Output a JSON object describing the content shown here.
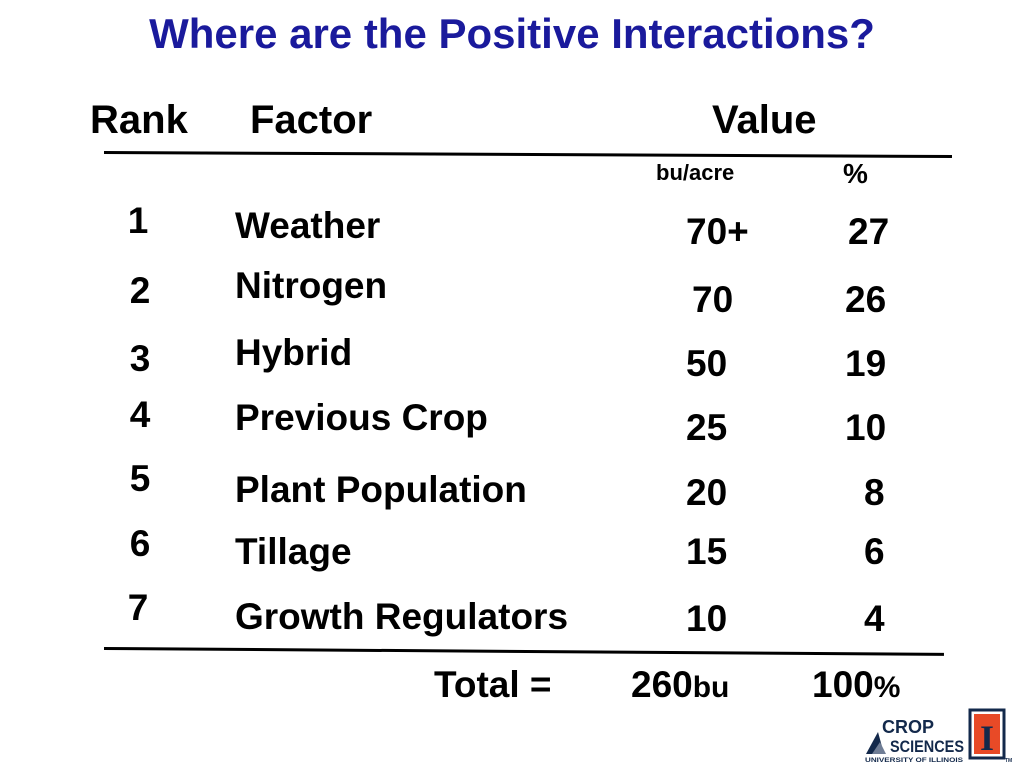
{
  "title": "Where are the Positive Interactions?",
  "headers": {
    "rank": "Rank",
    "factor": "Factor",
    "value": "Value"
  },
  "units": {
    "bu": "bu/acre",
    "pct": "%"
  },
  "rows": [
    {
      "rank": "1",
      "factor": "Weather",
      "bu": "70+",
      "pct": "27"
    },
    {
      "rank": "2",
      "factor": "Nitrogen",
      "bu": "70",
      "pct": "26"
    },
    {
      "rank": "3",
      "factor": "Hybrid",
      "bu": "50",
      "pct": "19"
    },
    {
      "rank": "4",
      "factor": "Previous Crop",
      "bu": "25",
      "pct": "10"
    },
    {
      "rank": "5",
      "factor": "Plant Population",
      "bu": "20",
      "pct": "8"
    },
    {
      "rank": "6",
      "factor": "Tillage",
      "bu": "15",
      "pct": "6"
    },
    {
      "rank": "7",
      "factor": "Growth Regulators",
      "bu": "10",
      "pct": "4"
    }
  ],
  "total": {
    "label": "Total =",
    "bu_value": "260",
    "bu_unit": "bu",
    "pct_value": "100",
    "pct_unit": "%"
  },
  "logo": {
    "line1": "CROP",
    "line2": "SCIENCES",
    "line3": "UNIVERSITY OF ILLINOIS",
    "tm": "TM",
    "emblem": "I"
  },
  "colors": {
    "title": "#1a1a9c",
    "logo_blue": "#13294b",
    "logo_orange": "#e84a27"
  }
}
